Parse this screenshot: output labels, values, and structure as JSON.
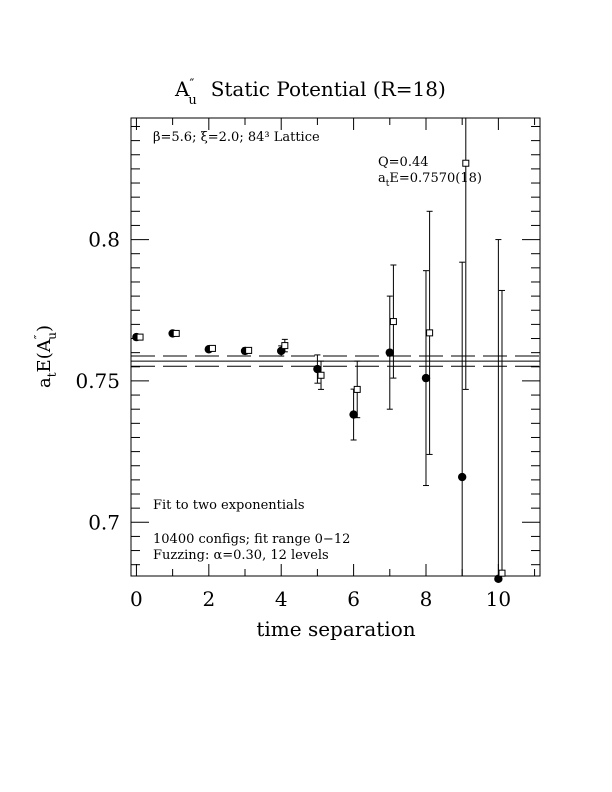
{
  "chart_data": {
    "type": "scatter",
    "title_main": "A",
    "title_sup": "″",
    "title_sub": "u",
    "title_rest": "Static Potential (R=18)",
    "xlabel": "time separation",
    "ylabel_pre": "a",
    "ylabel_sub_t": "t",
    "ylabel_mid": "E(A",
    "ylabel_sup": "″",
    "ylabel_sub_u": "u",
    "ylabel_post": ")",
    "xlim": [
      -0.15,
      11.15
    ],
    "ylim": [
      0.681,
      0.843
    ],
    "x_ticks": [
      0,
      2,
      4,
      6,
      8,
      10
    ],
    "x_tick_labels": [
      "0",
      "2",
      "4",
      "6",
      "8",
      "10"
    ],
    "y_ticks": [
      0.7,
      0.75,
      0.8
    ],
    "y_tick_labels": [
      "0.7",
      "0.75",
      "0.8"
    ],
    "annotations": {
      "lattice": "β=5.6; ξ=2.0; 84³ Lattice",
      "q": "Q=0.44",
      "energy_pre": "a",
      "energy_sub": "t",
      "energy_post": "E=0.7570(18)",
      "fit": "Fit to two exponentials",
      "configs": "10400 configs; fit range 0−12",
      "fuzz": "Fuzzing: α=0.30, 12 levels"
    },
    "fit": {
      "value": 0.757,
      "error": 0.0018
    },
    "series": [
      {
        "marker": "filled-circle",
        "points": [
          {
            "x": 0,
            "y": 0.7655,
            "err": 0.0008
          },
          {
            "x": 1,
            "y": 0.7668,
            "err": 0.0008
          },
          {
            "x": 2,
            "y": 0.7612,
            "err": 0.0008
          },
          {
            "x": 3,
            "y": 0.7606,
            "err": 0.001
          },
          {
            "x": 4,
            "y": 0.7606,
            "err": 0.0018
          },
          {
            "x": 5,
            "y": 0.7542,
            "err": 0.005
          },
          {
            "x": 6,
            "y": 0.7381,
            "err": 0.009
          },
          {
            "x": 7,
            "y": 0.76,
            "err": 0.02
          },
          {
            "x": 8,
            "y": 0.751,
            "err": 0.038
          },
          {
            "x": 9,
            "y": 0.716,
            "err": 0.076
          },
          {
            "x": 10,
            "y": 0.68,
            "err": 0.12
          }
        ]
      },
      {
        "marker": "open-square",
        "points": [
          {
            "x": 0.1,
            "y": 0.7655,
            "err": 0.0008
          },
          {
            "x": 1.1,
            "y": 0.7668,
            "err": 0.0008
          },
          {
            "x": 2.1,
            "y": 0.7615,
            "err": 0.0008
          },
          {
            "x": 3.1,
            "y": 0.7608,
            "err": 0.001
          },
          {
            "x": 4.1,
            "y": 0.7625,
            "err": 0.0022
          },
          {
            "x": 5.1,
            "y": 0.752,
            "err": 0.005
          },
          {
            "x": 6.1,
            "y": 0.747,
            "err": 0.01
          },
          {
            "x": 7.1,
            "y": 0.771,
            "err": 0.02
          },
          {
            "x": 8.1,
            "y": 0.767,
            "err": 0.043
          },
          {
            "x": 9.1,
            "y": 0.827,
            "err": 0.08
          },
          {
            "x": 10.1,
            "y": 0.682,
            "err": 0.1
          }
        ]
      }
    ]
  }
}
